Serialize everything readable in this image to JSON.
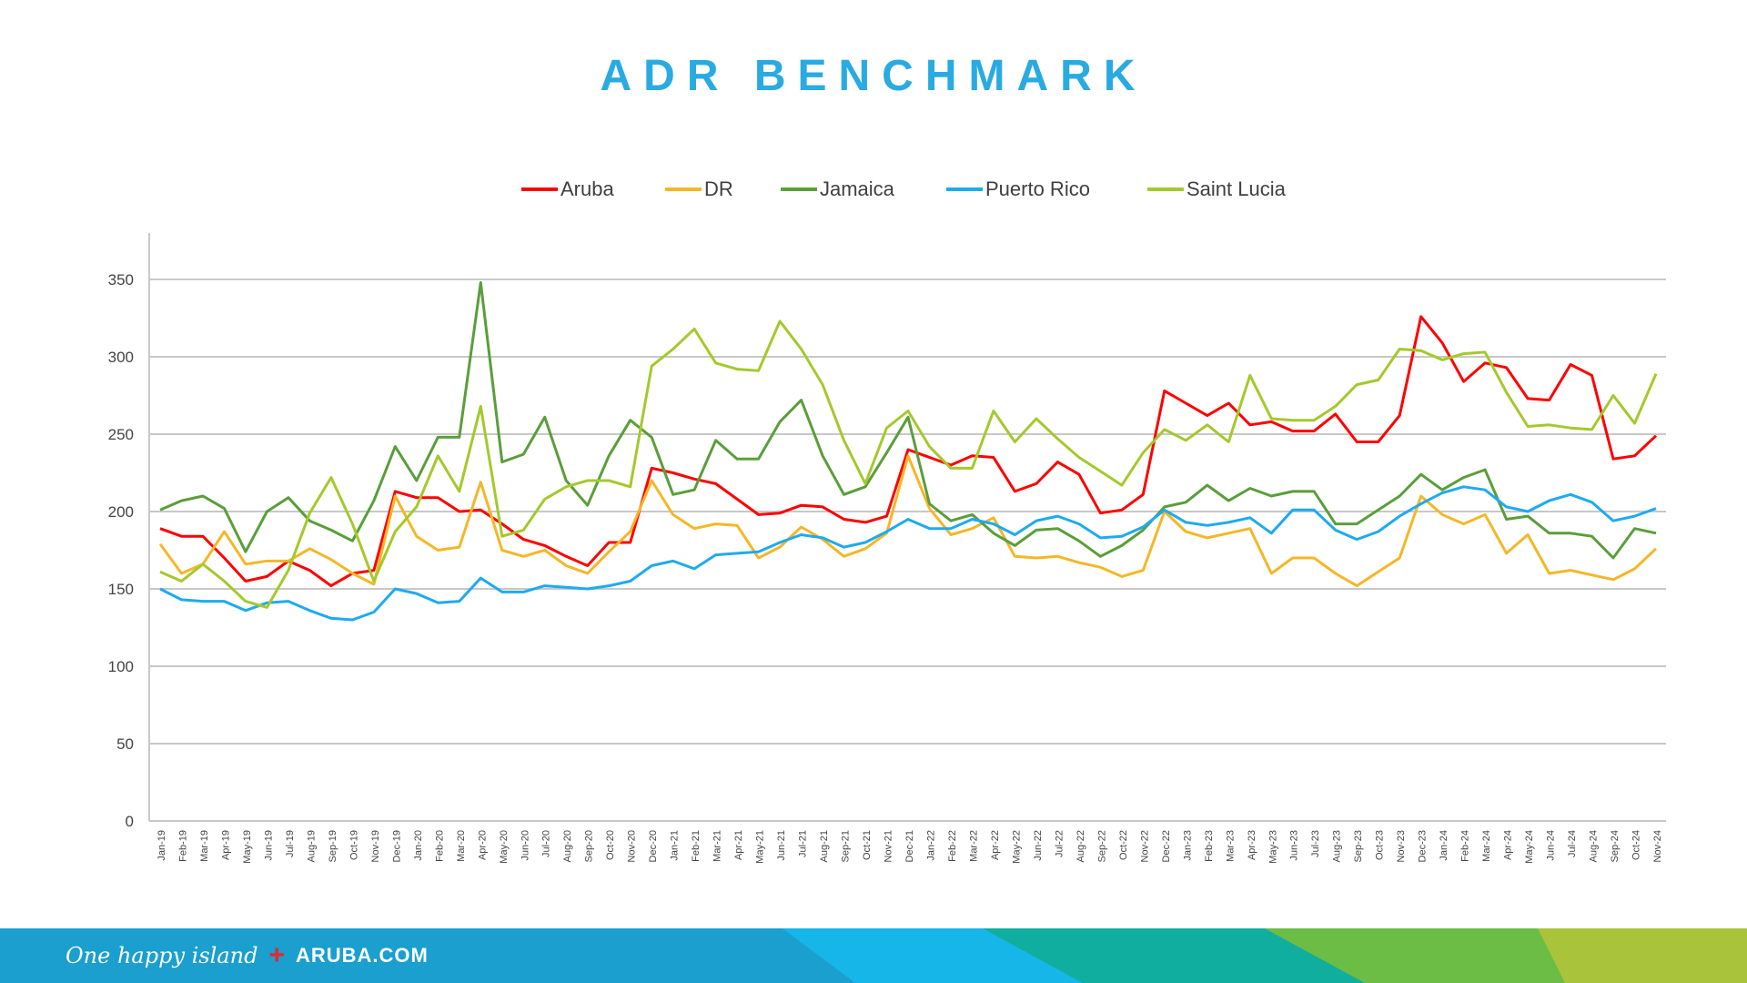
{
  "chart_data": {
    "type": "line",
    "title": "ADR BENCHMARK",
    "xlabel": "",
    "ylabel": "",
    "ylim": [
      0,
      380
    ],
    "yticks": [
      0,
      50,
      100,
      150,
      200,
      250,
      300,
      350
    ],
    "grid": true,
    "legend_position": "top-center",
    "categories": [
      "Jan-19",
      "Feb-19",
      "Mar-19",
      "Apr-19",
      "May-19",
      "Jun-19",
      "Jul-19",
      "Aug-19",
      "Sep-19",
      "Oct-19",
      "Nov-19",
      "Dec-19",
      "Jan-20",
      "Feb-20",
      "Mar-20",
      "Apr-20",
      "May-20",
      "Jun-20",
      "Jul-20",
      "Aug-20",
      "Sep-20",
      "Oct-20",
      "Nov-20",
      "Dec-20",
      "Jan-21",
      "Feb-21",
      "Mar-21",
      "Apr-21",
      "May-21",
      "Jun-21",
      "Jul-21",
      "Aug-21",
      "Sep-21",
      "Oct-21",
      "Nov-21",
      "Dec-21",
      "Jan-22",
      "Feb-22",
      "Mar-22",
      "Apr-22",
      "May-22",
      "Jun-22",
      "Jul-22",
      "Aug-22",
      "Sep-22",
      "Oct-22",
      "Nov-22",
      "Dec-22",
      "Jan-23",
      "Feb-23",
      "Mar-23",
      "Apr-23",
      "May-23",
      "Jun-23",
      "Jul-23",
      "Aug-23",
      "Sep-23",
      "Oct-23",
      "Nov-23",
      "Dec-23",
      "Jan-24",
      "Feb-24",
      "Mar-24",
      "Apr-24",
      "May-24",
      "Jun-24",
      "Jul-24",
      "Aug-24",
      "Sep-24",
      "Oct-24",
      "Nov-24"
    ],
    "series": [
      {
        "name": "Aruba",
        "color": "#ff0000",
        "values": [
          189,
          184,
          184,
          170,
          155,
          158,
          168,
          162,
          152,
          160,
          162,
          213,
          209,
          209,
          200,
          201,
          192,
          182,
          178,
          171,
          165,
          180,
          180,
          228,
          225,
          221,
          218,
          208,
          198,
          199,
          204,
          203,
          195,
          193,
          197,
          240,
          235,
          230,
          236,
          235,
          213,
          218,
          232,
          224,
          199,
          201,
          211,
          278,
          270,
          262,
          270,
          256,
          258,
          252,
          252,
          263,
          245,
          245,
          262,
          326,
          309,
          284,
          296,
          293,
          273,
          272,
          295,
          288,
          234,
          236,
          249
        ]
      },
      {
        "name": "DR",
        "color": "#f4b728",
        "values": [
          179,
          160,
          166,
          187,
          166,
          168,
          168,
          176,
          169,
          160,
          153,
          210,
          184,
          175,
          177,
          219,
          175,
          171,
          175,
          165,
          160,
          174,
          187,
          220,
          198,
          189,
          192,
          191,
          170,
          177,
          190,
          182,
          171,
          176,
          186,
          236,
          202,
          185,
          189,
          196,
          171,
          170,
          171,
          167,
          164,
          158,
          162,
          200,
          187,
          183,
          186,
          189,
          160,
          170,
          170,
          160,
          152,
          161,
          170,
          210,
          198,
          192,
          198,
          173,
          185,
          160,
          162,
          159,
          156,
          163,
          176
        ]
      },
      {
        "name": "Jamaica",
        "color": "#5a9e3a",
        "values": [
          201,
          207,
          210,
          202,
          174,
          200,
          209,
          194,
          188,
          181,
          207,
          242,
          220,
          248,
          248,
          348,
          232,
          237,
          261,
          220,
          204,
          236,
          259,
          248,
          211,
          214,
          246,
          234,
          234,
          258,
          272,
          236,
          211,
          216,
          238,
          261,
          205,
          194,
          198,
          186,
          178,
          188,
          189,
          181,
          171,
          178,
          188,
          203,
          206,
          217,
          207,
          215,
          210,
          213,
          213,
          192,
          192,
          201,
          210,
          224,
          214,
          222,
          227,
          195,
          197,
          186,
          186,
          184,
          170,
          189,
          186
        ]
      },
      {
        "name": "Puerto Rico",
        "color": "#1eaaf1",
        "values": [
          150,
          143,
          142,
          142,
          136,
          141,
          142,
          136,
          131,
          130,
          135,
          150,
          147,
          141,
          142,
          157,
          148,
          148,
          152,
          151,
          150,
          152,
          155,
          165,
          168,
          163,
          172,
          173,
          174,
          180,
          185,
          183,
          177,
          180,
          187,
          195,
          189,
          189,
          195,
          192,
          185,
          194,
          197,
          192,
          183,
          184,
          190,
          201,
          193,
          191,
          193,
          196,
          186,
          201,
          201,
          188,
          182,
          187,
          197,
          205,
          212,
          216,
          214,
          203,
          200,
          207,
          211,
          206,
          194,
          197,
          202
        ]
      },
      {
        "name": "Saint Lucia",
        "color": "#a4c92c",
        "values": [
          161,
          155,
          166,
          155,
          142,
          138,
          162,
          199,
          222,
          192,
          155,
          187,
          203,
          236,
          213,
          268,
          184,
          188,
          208,
          216,
          220,
          220,
          216,
          294,
          305,
          318,
          296,
          292,
          291,
          323,
          305,
          282,
          246,
          218,
          254,
          265,
          242,
          228,
          228,
          265,
          245,
          260,
          247,
          235,
          226,
          217,
          238,
          253,
          246,
          256,
          245,
          288,
          260,
          259,
          259,
          268,
          282,
          285,
          305,
          304,
          298,
          302,
          303,
          277,
          255,
          256,
          254,
          253,
          275,
          257,
          289
        ]
      }
    ]
  },
  "footer": {
    "tagline": "One happy island",
    "site": "ARUBA.COM",
    "plus": "+",
    "colors": [
      "#1a9fcf",
      "#16b6e8",
      "#10ae9e",
      "#6cbd45",
      "#a9c43b"
    ]
  }
}
